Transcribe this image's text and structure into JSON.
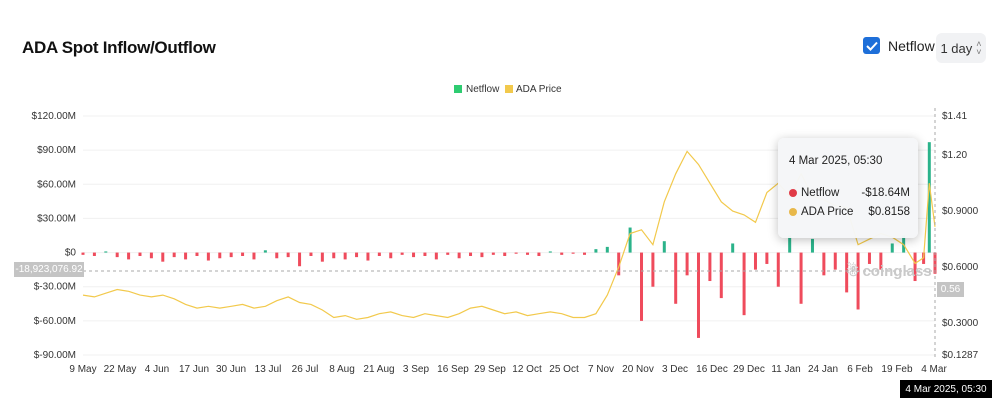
{
  "header": {
    "title": "ADA Spot Inflow/Outflow",
    "netflow_toggle_label": "Netflow",
    "netflow_checked": true,
    "interval": "1 day"
  },
  "colors": {
    "netflow_positive": "#2bb38a",
    "netflow_negative": "#ef4b5c",
    "price": "#f2c94c",
    "legend_netflow": "#2ecc71",
    "checkbox": "#1e6fd9"
  },
  "watermark": "coinglass",
  "crosshair": {
    "left_value": "-18,923,076.92",
    "right_value": "0.56",
    "x_label": "4 Mar 2025, 05:30"
  },
  "tooltip": {
    "date": "4 Mar 2025, 05:30",
    "rows": [
      {
        "label": "Netflow",
        "value": "-$18.64M",
        "color": "#e03a47"
      },
      {
        "label": "ADA Price",
        "value": "$0.8158",
        "color": "#e8b84a"
      }
    ]
  },
  "chart_data": {
    "type": "bar+line",
    "title": "ADA Spot Inflow/Outflow",
    "legend": {
      "placement": "top-center",
      "entries": [
        "Netflow",
        "ADA Price"
      ]
    },
    "grid": true,
    "y_left": {
      "ticks": [
        "$120.00M",
        "$90.00M",
        "$60.00M",
        "$30.00M",
        "$0",
        "$-30.00M",
        "$-60.00M",
        "$-90.00M"
      ],
      "range": [
        -90,
        120
      ],
      "unit": "M USD"
    },
    "y_right": {
      "ticks": [
        "$1.41",
        "$1.20",
        "$0.9000",
        "$0.6000",
        "$0.3000",
        "$0.1287"
      ],
      "range": [
        0.1287,
        1.41
      ]
    },
    "x_ticks": [
      "9 May",
      "22 May",
      "4 Jun",
      "17 Jun",
      "30 Jun",
      "13 Jul",
      "26 Jul",
      "8 Aug",
      "21 Aug",
      "3 Sep",
      "16 Sep",
      "29 Sep",
      "12 Oct",
      "25 Oct",
      "7 Nov",
      "20 Nov",
      "3 Dec",
      "16 Dec",
      "29 Dec",
      "11 Jan",
      "24 Jan",
      "6 Feb",
      "19 Feb",
      "4 Mar"
    ],
    "x_range": [
      "2024-05-09",
      "2025-03-04"
    ],
    "points": [
      {
        "d": "2024-05-09",
        "netflow": -2,
        "price": 0.45
      },
      {
        "d": "2024-05-13",
        "netflow": -3,
        "price": 0.44
      },
      {
        "d": "2024-05-17",
        "netflow": 1,
        "price": 0.46
      },
      {
        "d": "2024-05-21",
        "netflow": -4,
        "price": 0.48
      },
      {
        "d": "2024-05-25",
        "netflow": -6,
        "price": 0.47
      },
      {
        "d": "2024-05-29",
        "netflow": -3,
        "price": 0.45
      },
      {
        "d": "2024-06-02",
        "netflow": -5,
        "price": 0.44
      },
      {
        "d": "2024-06-06",
        "netflow": -8,
        "price": 0.45
      },
      {
        "d": "2024-06-10",
        "netflow": -4,
        "price": 0.43
      },
      {
        "d": "2024-06-14",
        "netflow": -6,
        "price": 0.4
      },
      {
        "d": "2024-06-18",
        "netflow": -3,
        "price": 0.38
      },
      {
        "d": "2024-06-22",
        "netflow": -7,
        "price": 0.39
      },
      {
        "d": "2024-06-26",
        "netflow": -5,
        "price": 0.38
      },
      {
        "d": "2024-06-30",
        "netflow": -4,
        "price": 0.39
      },
      {
        "d": "2024-07-04",
        "netflow": -3,
        "price": 0.4
      },
      {
        "d": "2024-07-08",
        "netflow": -6,
        "price": 0.38
      },
      {
        "d": "2024-07-12",
        "netflow": 2,
        "price": 0.39
      },
      {
        "d": "2024-07-16",
        "netflow": -5,
        "price": 0.42
      },
      {
        "d": "2024-07-20",
        "netflow": -4,
        "price": 0.44
      },
      {
        "d": "2024-07-24",
        "netflow": -12,
        "price": 0.41
      },
      {
        "d": "2024-07-28",
        "netflow": -3,
        "price": 0.4
      },
      {
        "d": "2024-08-01",
        "netflow": -8,
        "price": 0.37
      },
      {
        "d": "2024-08-05",
        "netflow": -5,
        "price": 0.33
      },
      {
        "d": "2024-08-09",
        "netflow": -6,
        "price": 0.34
      },
      {
        "d": "2024-08-13",
        "netflow": -4,
        "price": 0.32
      },
      {
        "d": "2024-08-17",
        "netflow": -7,
        "price": 0.33
      },
      {
        "d": "2024-08-21",
        "netflow": -3,
        "price": 0.35
      },
      {
        "d": "2024-08-25",
        "netflow": -5,
        "price": 0.36
      },
      {
        "d": "2024-08-29",
        "netflow": -2,
        "price": 0.34
      },
      {
        "d": "2024-09-02",
        "netflow": -4,
        "price": 0.33
      },
      {
        "d": "2024-09-06",
        "netflow": -3,
        "price": 0.35
      },
      {
        "d": "2024-09-10",
        "netflow": -6,
        "price": 0.34
      },
      {
        "d": "2024-09-14",
        "netflow": -2,
        "price": 0.33
      },
      {
        "d": "2024-09-18",
        "netflow": -5,
        "price": 0.35
      },
      {
        "d": "2024-09-22",
        "netflow": -3,
        "price": 0.38
      },
      {
        "d": "2024-09-26",
        "netflow": -4,
        "price": 0.39
      },
      {
        "d": "2024-09-30",
        "netflow": -2,
        "price": 0.37
      },
      {
        "d": "2024-10-04",
        "netflow": -3,
        "price": 0.35
      },
      {
        "d": "2024-10-08",
        "netflow": -1,
        "price": 0.36
      },
      {
        "d": "2024-10-12",
        "netflow": -2,
        "price": 0.34
      },
      {
        "d": "2024-10-16",
        "netflow": -3,
        "price": 0.35
      },
      {
        "d": "2024-10-20",
        "netflow": 1,
        "price": 0.36
      },
      {
        "d": "2024-10-24",
        "netflow": -2,
        "price": 0.35
      },
      {
        "d": "2024-10-28",
        "netflow": -1,
        "price": 0.33
      },
      {
        "d": "2024-11-01",
        "netflow": -2,
        "price": 0.33
      },
      {
        "d": "2024-11-05",
        "netflow": 3,
        "price": 0.35
      },
      {
        "d": "2024-11-09",
        "netflow": 5,
        "price": 0.45
      },
      {
        "d": "2024-11-13",
        "netflow": -20,
        "price": 0.6
      },
      {
        "d": "2024-11-17",
        "netflow": 22,
        "price": 0.78
      },
      {
        "d": "2024-11-21",
        "netflow": -60,
        "price": 0.8
      },
      {
        "d": "2024-11-25",
        "netflow": -30,
        "price": 0.72
      },
      {
        "d": "2024-11-29",
        "netflow": 10,
        "price": 0.95
      },
      {
        "d": "2024-12-03",
        "netflow": -45,
        "price": 1.1
      },
      {
        "d": "2024-12-07",
        "netflow": -20,
        "price": 1.22
      },
      {
        "d": "2024-12-11",
        "netflow": -75,
        "price": 1.15
      },
      {
        "d": "2024-12-15",
        "netflow": -25,
        "price": 1.05
      },
      {
        "d": "2024-12-19",
        "netflow": -40,
        "price": 0.95
      },
      {
        "d": "2024-12-23",
        "netflow": 8,
        "price": 0.9
      },
      {
        "d": "2024-12-27",
        "netflow": -55,
        "price": 0.88
      },
      {
        "d": "2024-12-31",
        "netflow": -15,
        "price": 0.84
      },
      {
        "d": "2025-01-04",
        "netflow": -10,
        "price": 1.0
      },
      {
        "d": "2025-01-08",
        "netflow": -30,
        "price": 1.05
      },
      {
        "d": "2025-01-12",
        "netflow": 15,
        "price": 0.98
      },
      {
        "d": "2025-01-16",
        "netflow": -45,
        "price": 1.1
      },
      {
        "d": "2025-01-20",
        "netflow": 12,
        "price": 0.98
      },
      {
        "d": "2025-01-24",
        "netflow": -20,
        "price": 0.96
      },
      {
        "d": "2025-01-28",
        "netflow": -15,
        "price": 0.93
      },
      {
        "d": "2025-02-01",
        "netflow": -35,
        "price": 0.92
      },
      {
        "d": "2025-02-05",
        "netflow": -50,
        "price": 0.72
      },
      {
        "d": "2025-02-09",
        "netflow": -10,
        "price": 0.75
      },
      {
        "d": "2025-02-13",
        "netflow": -15,
        "price": 0.78
      },
      {
        "d": "2025-02-17",
        "netflow": 8,
        "price": 0.76
      },
      {
        "d": "2025-02-21",
        "netflow": 15,
        "price": 0.72
      },
      {
        "d": "2025-02-25",
        "netflow": -25,
        "price": 0.62
      },
      {
        "d": "2025-02-28",
        "netflow": -10,
        "price": 0.65
      },
      {
        "d": "2025-03-02",
        "netflow": 97,
        "price": 1.05
      },
      {
        "d": "2025-03-04",
        "netflow": -18.64,
        "price": 0.8158
      }
    ]
  }
}
